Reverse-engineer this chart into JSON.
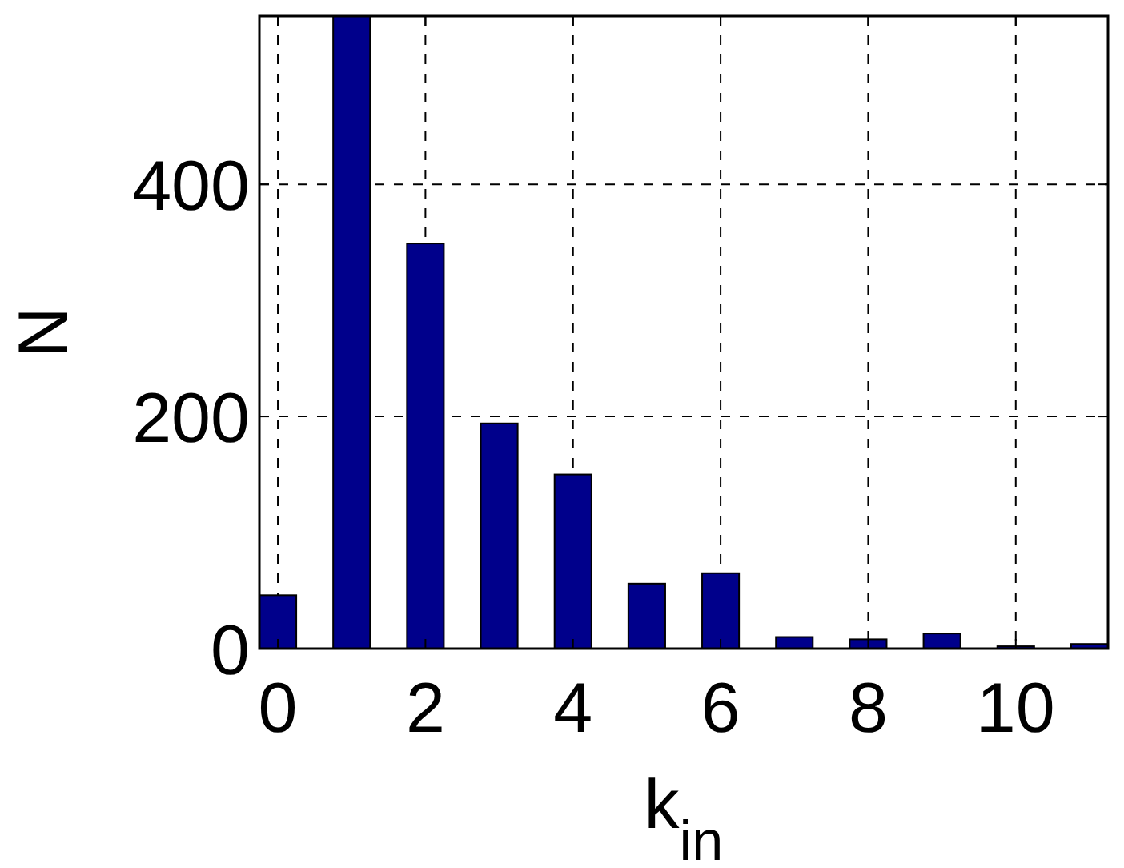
{
  "chart_data": {
    "type": "bar",
    "xlabel": "k$_{in}$",
    "ylabel": "N",
    "x": [
      0,
      1,
      2,
      3,
      4,
      5,
      6,
      7,
      8,
      9,
      10,
      11
    ],
    "values": [
      46,
      545,
      349,
      194,
      150,
      56,
      65,
      10,
      8,
      13,
      2,
      4
    ],
    "color": "#00008b",
    "xlim": [
      -0.25,
      11.25
    ],
    "xticks": [
      0,
      2,
      4,
      6,
      8,
      10
    ],
    "ylim": [
      0,
      545
    ],
    "yticks": [
      0,
      200,
      400
    ],
    "grid": true
  }
}
